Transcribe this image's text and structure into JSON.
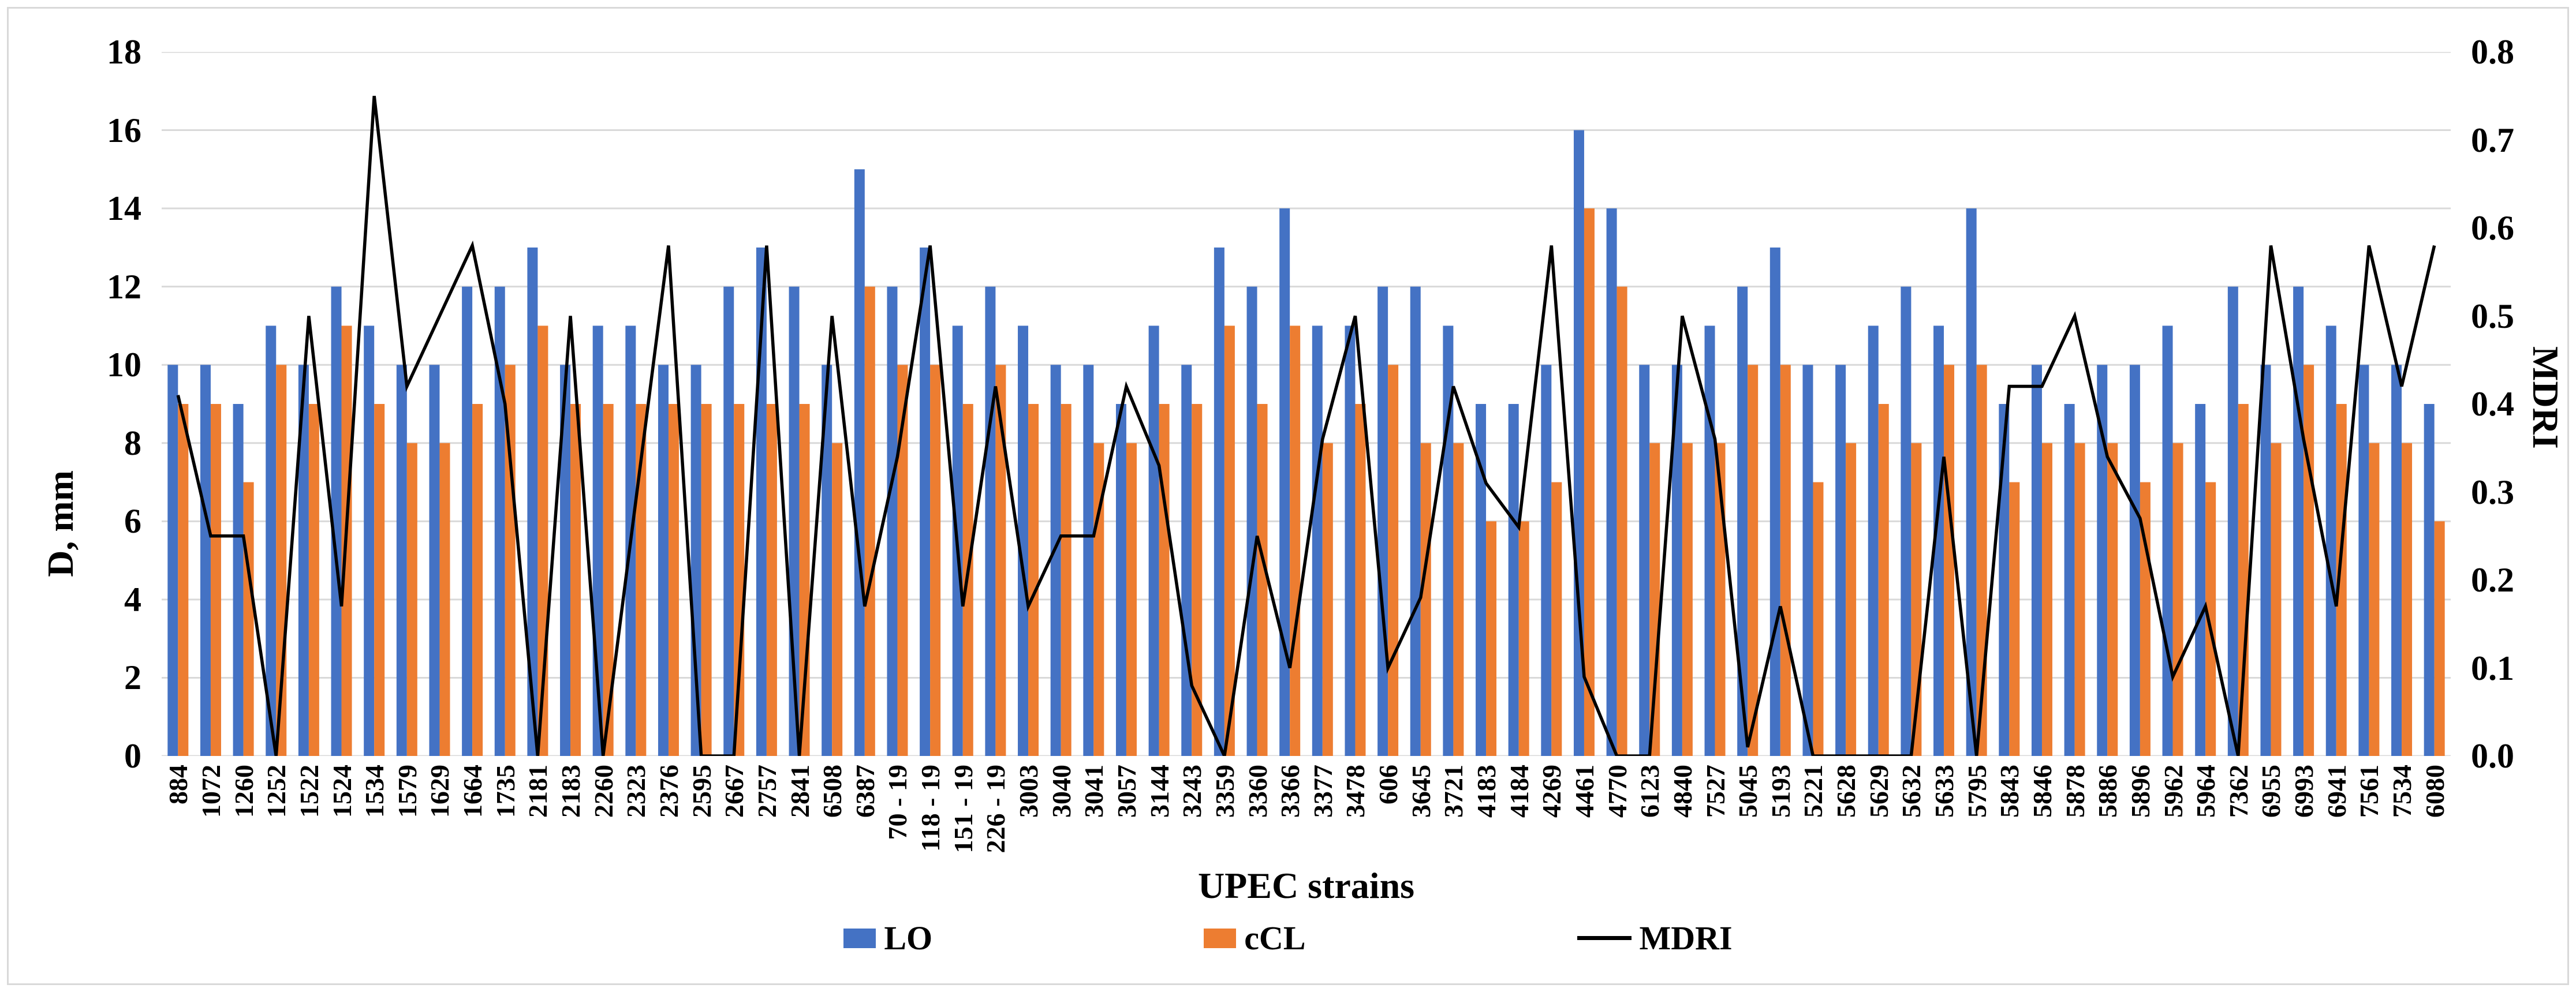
{
  "chart_data": {
    "type": "bar",
    "subtype": "combo-bar-line-dual-axis",
    "title": "",
    "xlabel": "UPEC strains",
    "grid": true,
    "legend_position": "bottom",
    "colors": {
      "LO": "#4472C4",
      "cCL": "#ED7D31",
      "MDRI": "#000000",
      "gridline": "#D9D9D9"
    },
    "left_axis": {
      "label": "D, mm",
      "min": 0,
      "max": 18,
      "step": 2,
      "tick_labels": [
        "0",
        "2",
        "4",
        "6",
        "8",
        "10",
        "12",
        "14",
        "16",
        "18"
      ]
    },
    "right_axis": {
      "label": "MDRI",
      "min": 0,
      "max": 0.8,
      "step": 0.1,
      "tick_labels": [
        "0.0",
        "0.1",
        "0.2",
        "0.3",
        "0.4",
        "0.5",
        "0.6",
        "0.7",
        "0.8"
      ]
    },
    "categories": [
      "884",
      "1072",
      "1260",
      "1252",
      "1522",
      "1524",
      "1534",
      "1579",
      "1629",
      "1664",
      "1735",
      "2181",
      "2183",
      "2260",
      "2323",
      "2376",
      "2595",
      "2667",
      "2757",
      "2841",
      "6508",
      "6387",
      "70 - 19",
      "118 - 19",
      "151 - 19",
      "226 - 19",
      "3003",
      "3040",
      "3041",
      "3057",
      "3144",
      "3243",
      "3359",
      "3360",
      "3366",
      "3377",
      "3478",
      "606",
      "3645",
      "3721",
      "4183",
      "4184",
      "4269",
      "4461",
      "4770",
      "6123",
      "4840",
      "7527",
      "5045",
      "5193",
      "5221",
      "5628",
      "5629",
      "5632",
      "5633",
      "5795",
      "5843",
      "5846",
      "5878",
      "5886",
      "5896",
      "5962",
      "5964",
      "7362",
      "6955",
      "6993",
      "6941",
      "7561",
      "7534",
      "6080"
    ],
    "series": [
      {
        "name": "LO",
        "type": "bar",
        "axis": "left",
        "color": "#4472C4",
        "values": [
          10,
          10,
          9,
          11,
          10,
          12,
          11,
          10,
          10,
          12,
          12,
          13,
          10,
          11,
          11,
          10,
          10,
          12,
          13,
          12,
          10,
          15,
          12,
          13,
          11,
          12,
          11,
          10,
          10,
          9,
          11,
          10,
          13,
          12,
          14,
          11,
          11,
          12,
          12,
          11,
          9,
          9,
          10,
          16,
          14,
          10,
          10,
          11,
          12,
          13,
          10,
          10,
          11,
          12,
          11,
          14,
          9,
          10,
          9,
          10,
          10,
          11,
          9,
          12,
          10,
          12,
          11,
          10,
          10,
          9
        ]
      },
      {
        "name": "cCL",
        "type": "bar",
        "axis": "left",
        "color": "#ED7D31",
        "values": [
          9,
          9,
          7,
          10,
          9,
          11,
          9,
          8,
          8,
          9,
          10,
          11,
          9,
          9,
          9,
          9,
          9,
          9,
          9,
          9,
          8,
          12,
          10,
          10,
          9,
          10,
          9,
          9,
          8,
          8,
          9,
          9,
          11,
          9,
          11,
          8,
          9,
          10,
          8,
          8,
          6,
          6,
          7,
          14,
          12,
          8,
          8,
          8,
          10,
          10,
          7,
          8,
          9,
          8,
          10,
          10,
          7,
          8,
          8,
          8,
          7,
          8,
          7,
          9,
          8,
          10,
          9,
          8,
          8,
          6
        ]
      },
      {
        "name": "MDRI",
        "type": "line",
        "axis": "right",
        "color": "#000000",
        "values": [
          0.41,
          0.25,
          0.25,
          0,
          0.5,
          0.17,
          0.75,
          0.42,
          0.5,
          0.58,
          0.4,
          0,
          0.5,
          0,
          0.29,
          0.58,
          0,
          0,
          0.58,
          0,
          0.5,
          0.17,
          0.34,
          0.58,
          0.17,
          0.42,
          0.17,
          0.25,
          0.25,
          0.42,
          0.33,
          0.08,
          0,
          0.25,
          0.1,
          0.36,
          0.5,
          0.1,
          0.18,
          0.42,
          0.31,
          0.26,
          0.58,
          0.09,
          0,
          0,
          0.5,
          0.36,
          0.01,
          0.17,
          0,
          0,
          0,
          0,
          0.34,
          0,
          0.42,
          0.42,
          0.5,
          0.34,
          0.27,
          0.09,
          0.17,
          0,
          0.58,
          0.36,
          0.17,
          0.58,
          0.42,
          0.58
        ]
      }
    ]
  }
}
